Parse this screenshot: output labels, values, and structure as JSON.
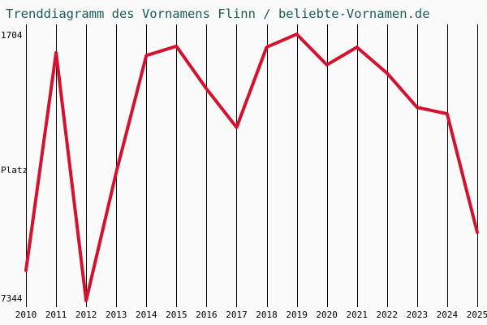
{
  "chart_data": {
    "type": "line",
    "title": "Trenddiagramm des Vornamens Flinn / beliebte-Vornamen.de",
    "ylabel": "Platz",
    "y_top_label": "1704",
    "y_bottom_label": "7344",
    "ylim": [
      1704,
      7344
    ],
    "y_inverted": true,
    "grid": "vertical",
    "x": [
      "2010",
      "2011",
      "2012",
      "2013",
      "2014",
      "2015",
      "2016",
      "2017",
      "2018",
      "2019",
      "2020",
      "2021",
      "2022",
      "2023",
      "2024",
      "2025"
    ],
    "series": [
      {
        "color": "#d2122e",
        "values": [
          6727,
          2283,
          7344,
          4726,
          2340,
          2151,
          3020,
          3807,
          2170,
          1904,
          2530,
          2170,
          2700,
          3400,
          3530,
          5950
        ]
      }
    ]
  }
}
